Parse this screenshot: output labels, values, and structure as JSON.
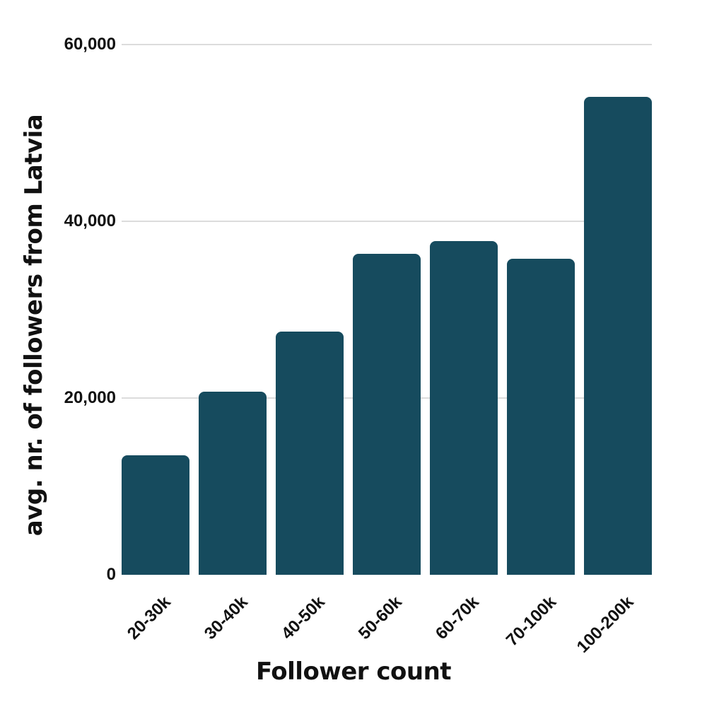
{
  "chart_data": {
    "type": "bar",
    "title": "",
    "xlabel": "Follower count",
    "ylabel": "avg. nr. of followers from Latvia",
    "categories": [
      "20-30k",
      "30-40k",
      "40-50k",
      "50-60k",
      "60-70k",
      "70-100k",
      "100-200k"
    ],
    "values": [
      13500,
      20700,
      27500,
      36300,
      37800,
      35800,
      54100
    ],
    "ylim": [
      0,
      60000
    ],
    "yticks": [
      0,
      20000,
      40000,
      60000
    ],
    "ytick_labels": [
      "0",
      "20,000",
      "40,000",
      "60,000"
    ],
    "grid": true,
    "legend": null,
    "bar_color": "#164b5e"
  }
}
